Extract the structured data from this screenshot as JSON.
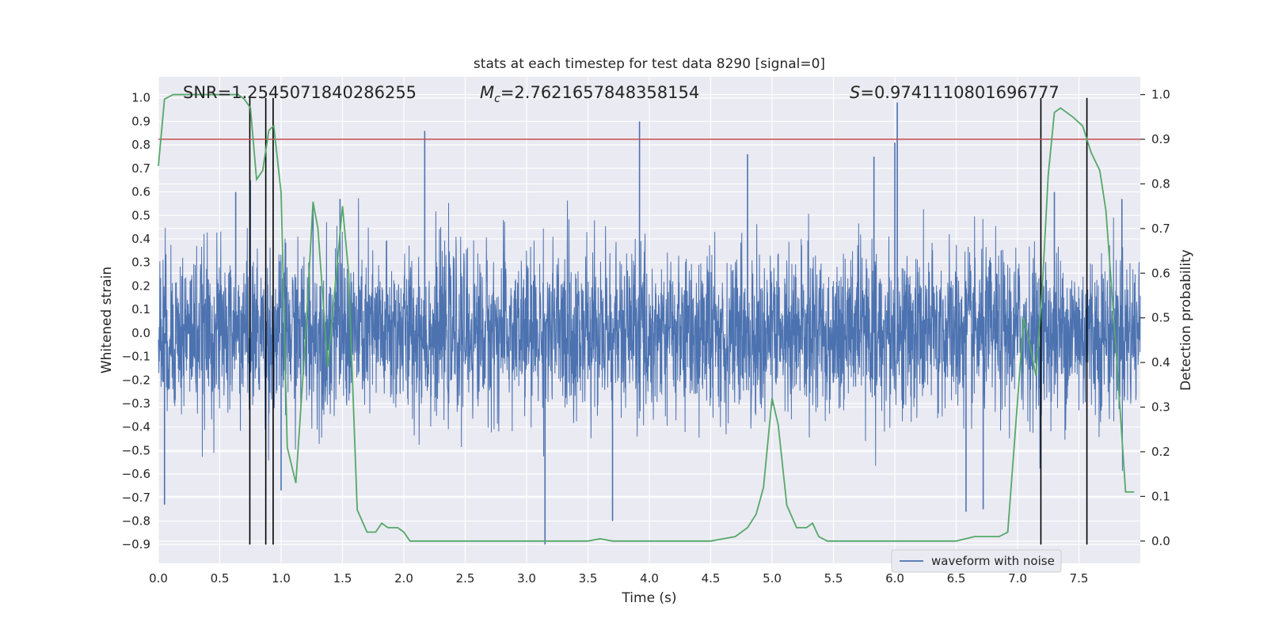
{
  "chart_data": {
    "type": "line",
    "title": "stats at each timestep for test data 8290 [signal=0]",
    "xlabel": "Time (s)",
    "ylabel_left": "Whitened strain",
    "ylabel_right": "Detection probability",
    "xlim": [
      0.0,
      8.0
    ],
    "ylim_left": [
      -0.98,
      1.09
    ],
    "ylim_right": [
      -0.05,
      1.04
    ],
    "x_ticks": [
      "0.0",
      "0.5",
      "1.0",
      "1.5",
      "2.0",
      "2.5",
      "3.0",
      "3.5",
      "4.0",
      "4.5",
      "5.0",
      "5.5",
      "6.0",
      "6.5",
      "7.0",
      "7.5"
    ],
    "y_ticks_left": [
      "1.0",
      "0.9",
      "0.8",
      "0.7",
      "0.6",
      "0.5",
      "0.4",
      "0.3",
      "0.2",
      "0.1",
      "0.0",
      "−0.1",
      "−0.2",
      "−0.3",
      "−0.4",
      "−0.5",
      "−0.6",
      "−0.7",
      "−0.8",
      "−0.9"
    ],
    "y_ticks_right": [
      "1.0",
      "0.9",
      "0.8",
      "0.7",
      "0.6",
      "0.5",
      "0.4",
      "0.3",
      "0.2",
      "0.1",
      "0.0"
    ],
    "grid": true,
    "legend": {
      "placement": "lower-right",
      "entries": [
        "waveform with noise"
      ]
    },
    "annotations": {
      "snr": "SNR=1.2545071840286255",
      "mc": "=2.7621657848358154",
      "mc_symbol": "M",
      "mc_subscript": "c",
      "s": "=0.9741110801696777",
      "s_symbol": "S"
    },
    "threshold": {
      "axis": "right",
      "value": 0.9,
      "color": "#c44e52"
    },
    "vertical_lines_x": [
      0.745,
      0.875,
      0.935,
      7.19,
      7.565
    ],
    "vertical_lines_range_left": [
      -0.9,
      1.0
    ],
    "series": [
      {
        "name": "waveform with noise",
        "axis": "left",
        "color": "#4c72b0",
        "kind": "noise",
        "typical_amplitude": 0.28,
        "spikes": [
          [
            0.05,
            -0.73
          ],
          [
            0.63,
            0.6
          ],
          [
            0.75,
            0.65
          ],
          [
            1.0,
            -0.67
          ],
          [
            1.26,
            0.55
          ],
          [
            1.48,
            0.57
          ],
          [
            2.17,
            0.86
          ],
          [
            3.15,
            -0.9
          ],
          [
            3.7,
            -0.8
          ],
          [
            3.92,
            0.9
          ],
          [
            4.8,
            0.76
          ],
          [
            5.83,
            0.75
          ],
          [
            6.0,
            0.81
          ],
          [
            6.02,
            0.98
          ],
          [
            6.58,
            -0.76
          ],
          [
            6.72,
            -0.75
          ],
          [
            7.3,
            0.6
          ],
          [
            7.85,
            0.57
          ]
        ]
      },
      {
        "name": "",
        "axis": "right",
        "color": "#55a868",
        "x": [
          0.0,
          0.05,
          0.12,
          0.2,
          0.3,
          0.4,
          0.5,
          0.6,
          0.65,
          0.7,
          0.75,
          0.8,
          0.85,
          0.9,
          0.94,
          1.0,
          1.05,
          1.12,
          1.2,
          1.26,
          1.3,
          1.38,
          1.45,
          1.5,
          1.55,
          1.62,
          1.7,
          1.77,
          1.82,
          1.87,
          1.95,
          2.0,
          2.05,
          2.2,
          2.5,
          3.0,
          3.5,
          3.6,
          3.7,
          4.0,
          4.5,
          4.6,
          4.7,
          4.8,
          4.87,
          4.93,
          5.0,
          5.05,
          5.12,
          5.2,
          5.28,
          5.33,
          5.38,
          5.45,
          5.55,
          6.0,
          6.5,
          6.65,
          6.75,
          6.85,
          6.92,
          6.98,
          7.05,
          7.1,
          7.15,
          7.2,
          7.25,
          7.3,
          7.35,
          7.45,
          7.53,
          7.6,
          7.67,
          7.72,
          7.8,
          7.88,
          7.95
        ],
        "y": [
          0.84,
          0.99,
          1.0,
          1.0,
          1.0,
          1.0,
          1.0,
          1.0,
          1.0,
          0.99,
          0.97,
          0.81,
          0.83,
          0.92,
          0.93,
          0.78,
          0.21,
          0.13,
          0.46,
          0.76,
          0.7,
          0.39,
          0.6,
          0.75,
          0.6,
          0.07,
          0.02,
          0.02,
          0.04,
          0.03,
          0.03,
          0.02,
          0.0,
          0.0,
          0.0,
          0.0,
          0.0,
          0.005,
          0.0,
          0.0,
          0.0,
          0.005,
          0.01,
          0.03,
          0.06,
          0.12,
          0.32,
          0.26,
          0.08,
          0.03,
          0.03,
          0.04,
          0.01,
          0.0,
          0.0,
          0.0,
          0.0,
          0.01,
          0.01,
          0.01,
          0.02,
          0.24,
          0.5,
          0.44,
          0.37,
          0.56,
          0.82,
          0.96,
          0.97,
          0.95,
          0.93,
          0.87,
          0.83,
          0.74,
          0.44,
          0.11,
          0.11
        ]
      }
    ]
  }
}
